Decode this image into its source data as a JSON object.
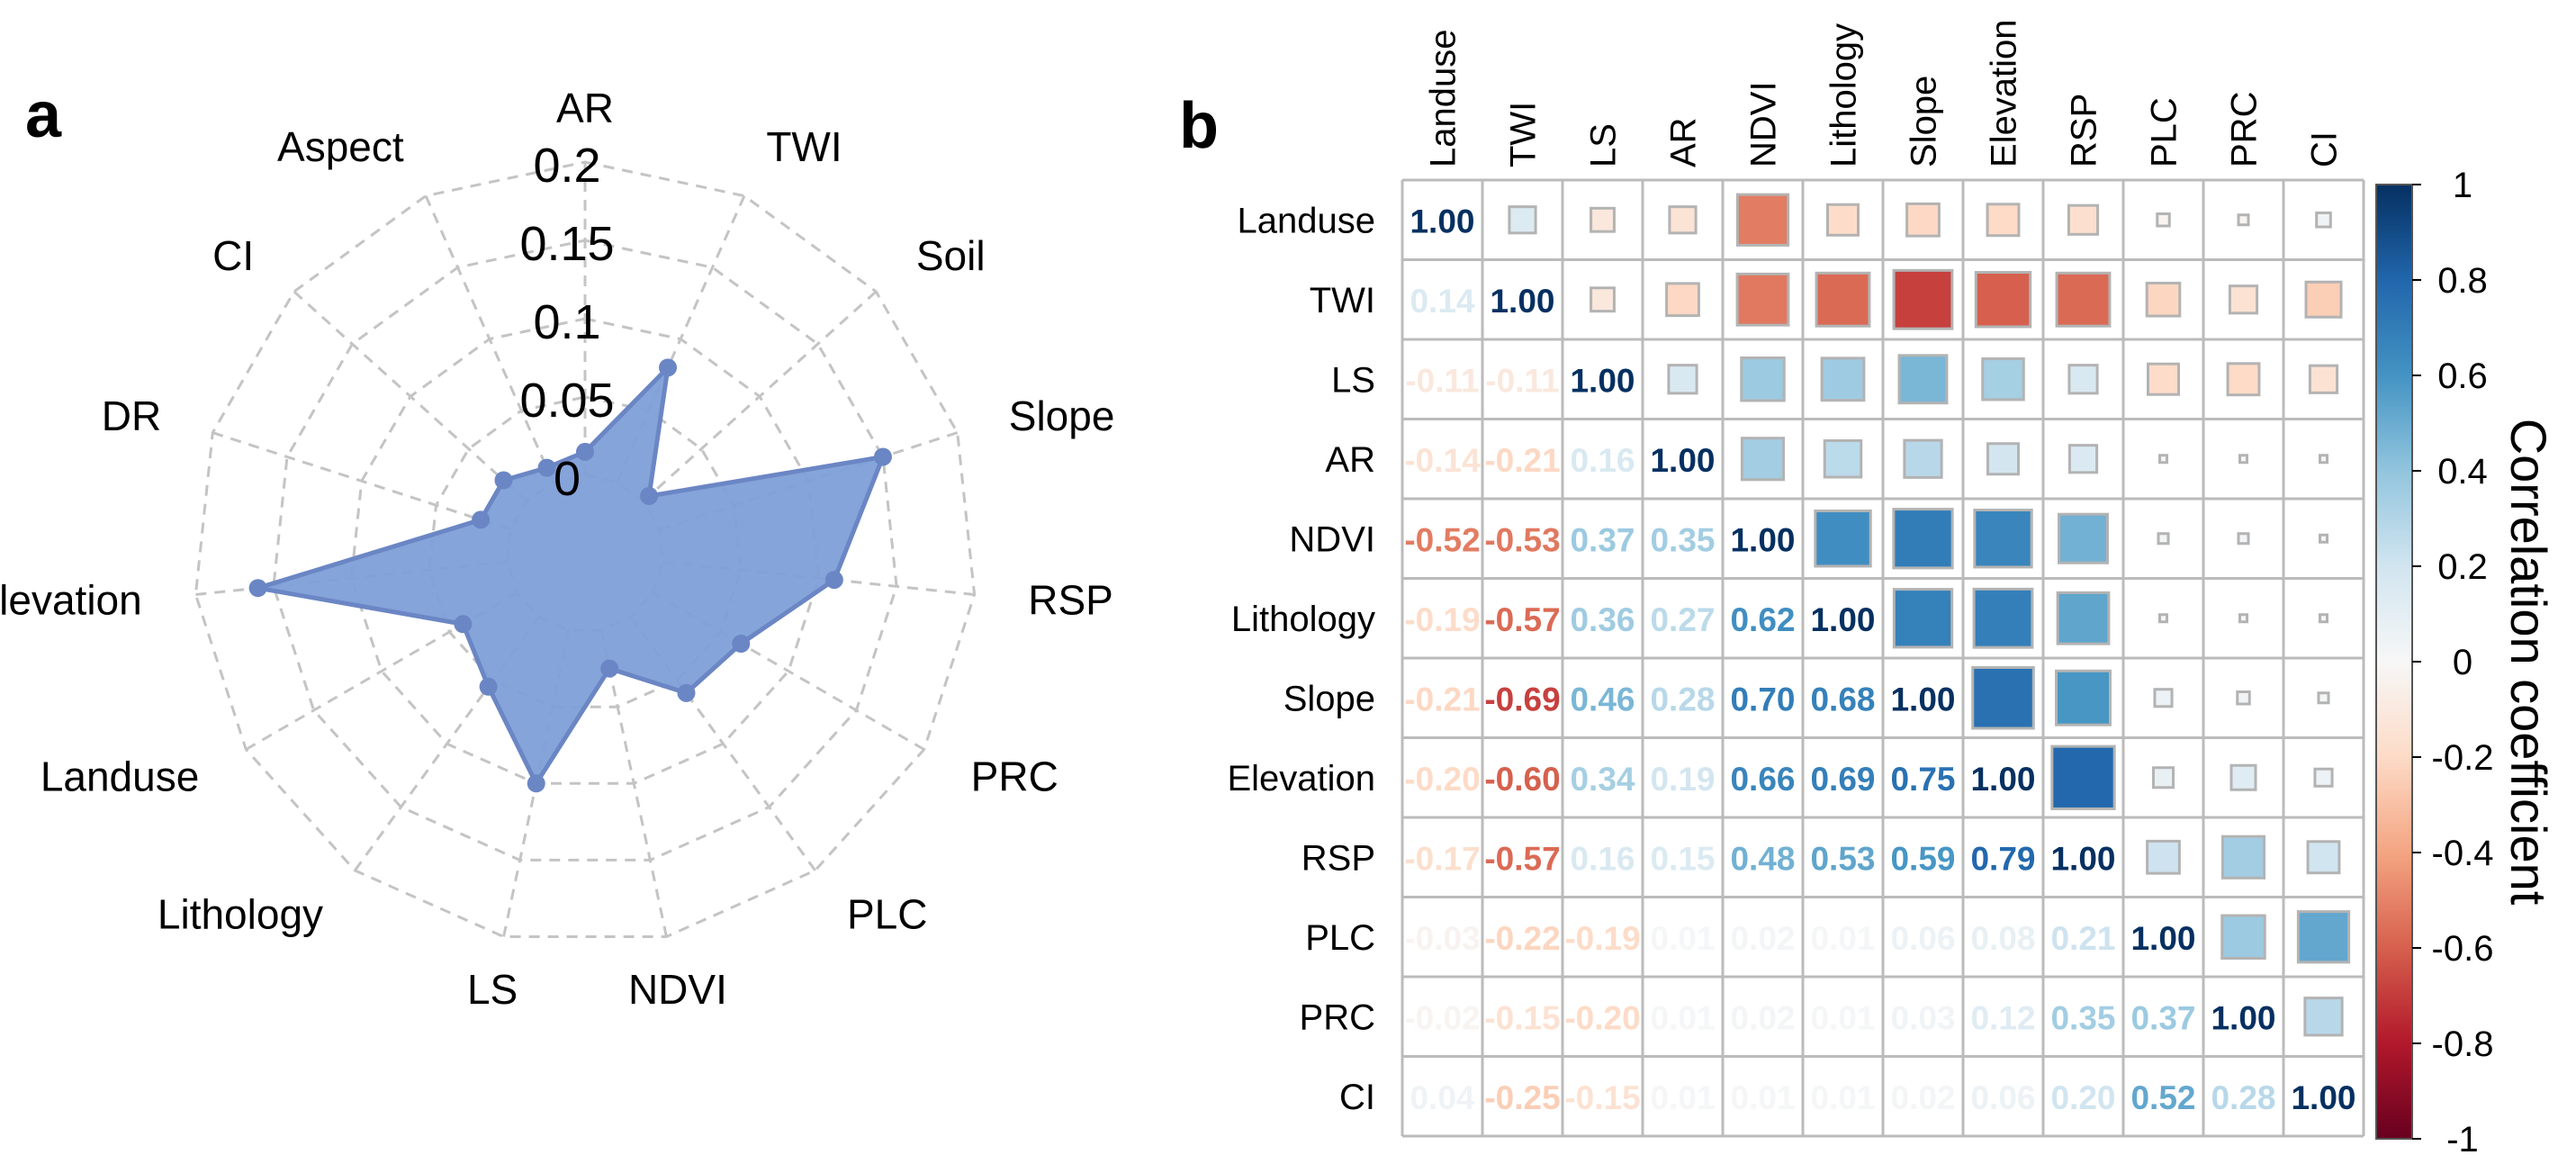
{
  "panels": {
    "a": "a",
    "b": "b"
  },
  "chart_data": [
    {
      "type": "radar",
      "panel": "a",
      "axes": [
        "AR",
        "TWI",
        "Soil",
        "Slope",
        "RSP",
        "PRC",
        "PLC",
        "NDVI",
        "LS",
        "Lithology",
        "Landuse",
        "Elevation",
        "DR",
        "CI",
        "Aspect"
      ],
      "values": [
        0.015,
        0.08,
        0.005,
        0.15,
        0.11,
        0.065,
        0.06,
        0.025,
        0.1,
        0.055,
        0.04,
        0.16,
        0.02,
        0.02,
        0.01
      ],
      "rlim": [
        0,
        0.2
      ],
      "radial_ticks": [
        "0",
        "0.05",
        "0.1",
        "0.15",
        "0.2"
      ],
      "grid": "dashed polygon"
    },
    {
      "type": "heatmap",
      "panel": "b",
      "variables": [
        "Landuse",
        "TWI",
        "LS",
        "AR",
        "NDVI",
        "Lithology",
        "Slope",
        "Elevation",
        "RSP",
        "PLC",
        "PRC",
        "CI"
      ],
      "lower_triangle_labels": [
        [
          "1.00"
        ],
        [
          "0.14",
          "1.00"
        ],
        [
          "-0.11",
          "-0.11",
          "1.00"
        ],
        [
          "-0.14",
          "-0.21",
          "0.16",
          "1.00"
        ],
        [
          "-0.52",
          "-0.53",
          "0.37",
          "0.35",
          "1.00"
        ],
        [
          "-0.19",
          "-0.57",
          "0.36",
          "0.27",
          "0.62",
          "1.00"
        ],
        [
          "-0.21",
          "-0.69",
          "0.46",
          "0.28",
          "0.70",
          "0.68",
          "1.00"
        ],
        [
          "-0.20",
          "-0.60",
          "0.34",
          "0.19",
          "0.66",
          "0.69",
          "0.75",
          "1.00"
        ],
        [
          "-0.17",
          "-0.57",
          "0.16",
          "0.15",
          "0.48",
          "0.53",
          "0.59",
          "0.79",
          "1.00"
        ],
        [
          "-0.03",
          "-0.22",
          "-0.19",
          "0.01",
          "0.02",
          "0.01",
          "0.06",
          "0.08",
          "0.21",
          "1.00"
        ],
        [
          "-0.02",
          "-0.15",
          "-0.20",
          "0.01",
          "0.02",
          "0.01",
          "0.03",
          "0.12",
          "0.35",
          "0.37",
          "1.00"
        ],
        [
          "0.04",
          "-0.25",
          "-0.15",
          "0.01",
          "0.01",
          "0.01",
          "0.02",
          "0.06",
          "0.20",
          "0.52",
          "0.28",
          "1.00"
        ]
      ],
      "lower_triangle_values": [
        [
          1.0
        ],
        [
          0.14,
          1.0
        ],
        [
          -0.11,
          -0.11,
          1.0
        ],
        [
          -0.14,
          -0.21,
          0.16,
          1.0
        ],
        [
          -0.52,
          -0.53,
          0.37,
          0.35,
          1.0
        ],
        [
          -0.19,
          -0.57,
          0.36,
          0.27,
          0.62,
          1.0
        ],
        [
          -0.21,
          -0.69,
          0.46,
          0.28,
          0.7,
          0.68,
          1.0
        ],
        [
          -0.2,
          -0.6,
          0.34,
          0.19,
          0.66,
          0.69,
          0.75,
          1.0
        ],
        [
          -0.17,
          -0.57,
          0.16,
          0.15,
          0.48,
          0.53,
          0.59,
          0.79,
          1.0
        ],
        [
          -0.03,
          -0.22,
          -0.19,
          0.01,
          0.02,
          0.01,
          0.06,
          0.08,
          0.21,
          1.0
        ],
        [
          -0.02,
          -0.15,
          -0.2,
          0.01,
          0.02,
          0.01,
          0.03,
          0.12,
          0.35,
          0.37,
          1.0
        ],
        [
          0.04,
          -0.25,
          -0.15,
          0.01,
          0.01,
          0.01,
          0.02,
          0.06,
          0.2,
          0.52,
          0.28,
          1.0
        ]
      ],
      "upper_triangle_square_values": [
        [
          0.14,
          -0.11,
          -0.14,
          -0.52,
          -0.19,
          -0.21,
          -0.2,
          -0.17,
          -0.03,
          -0.02,
          0.04
        ],
        [
          -0.11,
          -0.21,
          -0.53,
          -0.57,
          -0.69,
          -0.6,
          -0.57,
          -0.22,
          -0.15,
          -0.25
        ],
        [
          0.16,
          0.37,
          0.36,
          0.46,
          0.34,
          0.16,
          -0.19,
          -0.2,
          -0.15
        ],
        [
          0.35,
          0.27,
          0.28,
          0.19,
          0.15,
          0.01,
          0.01,
          0.01
        ],
        [
          0.62,
          0.7,
          0.66,
          0.48,
          0.02,
          0.02,
          0.01
        ],
        [
          0.68,
          0.69,
          0.53,
          0.01,
          0.01,
          0.01
        ],
        [
          0.75,
          0.59,
          0.06,
          0.03,
          0.02
        ],
        [
          0.79,
          0.08,
          0.12,
          0.06
        ],
        [
          0.21,
          0.35,
          0.2
        ],
        [
          0.37,
          0.52
        ],
        [
          0.28
        ]
      ],
      "colorbar": {
        "label": "Correlation coefficient",
        "ticks": [
          "1",
          "0.8",
          "0.6",
          "0.4",
          "0.2",
          "0",
          "-0.2",
          "-0.4",
          "-0.6",
          "-0.8",
          "-1"
        ],
        "range": [
          -1,
          1
        ],
        "colors": [
          "#67001f",
          "#b2182b",
          "#d6604d",
          "#f4a582",
          "#fddbc7",
          "#f7f7f7",
          "#d1e5f0",
          "#92c5de",
          "#4393c3",
          "#2166ac",
          "#053061"
        ]
      }
    }
  ],
  "colors": {
    "radar_fill": "#7e9fd8",
    "radar_stroke": "#6b86c4",
    "grid": "#c4c4c4",
    "cell_border": "#bbbbbb"
  }
}
